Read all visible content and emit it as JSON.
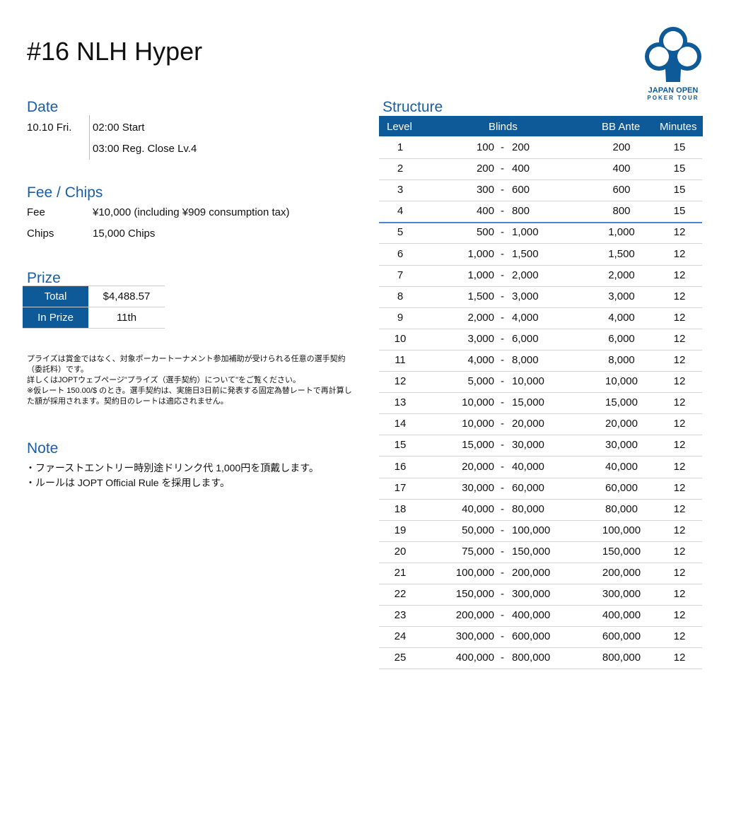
{
  "title": "#16 NLH Hyper",
  "logo": {
    "text1": "JAPAN OPEN",
    "text2": "POKER TOUR",
    "color": "#0e5a98"
  },
  "date": {
    "heading": "Date",
    "day": "10.10 Fri.",
    "start": "02:00 Start",
    "reg_close": "03:00 Reg. Close Lv.4"
  },
  "fee_chips": {
    "heading": "Fee / Chips",
    "fee_label": "Fee",
    "fee_value": "¥10,000 (including ¥909 consumption tax)",
    "chips_label": "Chips",
    "chips_value": "15,000 Chips"
  },
  "prize": {
    "heading": "Prize",
    "total_label": "Total",
    "total_value": "$4,488.57",
    "in_prize_label": "In Prize",
    "in_prize_value": "11th"
  },
  "prize_note": [
    "プライズは賞金ではなく、対象ポーカートーナメント参加補助が受けられる任意の選手契約（委託料）です。",
    "詳しくはJOPTウェブページ\"プライズ（選手契約）について\"をご覧ください。",
    "※仮レート 150.00/$ のとき。選手契約は、実施日3日前に発表する固定為替レートで再計算した額が採用されます。契約日のレートは適応されません。"
  ],
  "note": {
    "heading": "Note",
    "items": [
      "・ファーストエントリー時別途ドリンク代  1,000円を頂戴します。",
      "・ルールは JOPT Official Rule を採用します。"
    ]
  },
  "structure": {
    "heading": "Structure",
    "columns": [
      "Level",
      "Blinds",
      "BB Ante",
      "Minutes"
    ],
    "rows": [
      [
        "1",
        "100",
        "200",
        "200",
        "15"
      ],
      [
        "2",
        "200",
        "400",
        "400",
        "15"
      ],
      [
        "3",
        "300",
        "600",
        "600",
        "15"
      ],
      [
        "4",
        "400",
        "800",
        "800",
        "15"
      ],
      [
        "5",
        "500",
        "1,000",
        "1,000",
        "12"
      ],
      [
        "6",
        "1,000",
        "1,500",
        "1,500",
        "12"
      ],
      [
        "7",
        "1,000",
        "2,000",
        "2,000",
        "12"
      ],
      [
        "8",
        "1,500",
        "3,000",
        "3,000",
        "12"
      ],
      [
        "9",
        "2,000",
        "4,000",
        "4,000",
        "12"
      ],
      [
        "10",
        "3,000",
        "6,000",
        "6,000",
        "12"
      ],
      [
        "11",
        "4,000",
        "8,000",
        "8,000",
        "12"
      ],
      [
        "12",
        "5,000",
        "10,000",
        "10,000",
        "12"
      ],
      [
        "13",
        "10,000",
        "15,000",
        "15,000",
        "12"
      ],
      [
        "14",
        "10,000",
        "20,000",
        "20,000",
        "12"
      ],
      [
        "15",
        "15,000",
        "30,000",
        "30,000",
        "12"
      ],
      [
        "16",
        "20,000",
        "40,000",
        "40,000",
        "12"
      ],
      [
        "17",
        "30,000",
        "60,000",
        "60,000",
        "12"
      ],
      [
        "18",
        "40,000",
        "80,000",
        "80,000",
        "12"
      ],
      [
        "19",
        "50,000",
        "100,000",
        "100,000",
        "12"
      ],
      [
        "20",
        "75,000",
        "150,000",
        "150,000",
        "12"
      ],
      [
        "21",
        "100,000",
        "200,000",
        "200,000",
        "12"
      ],
      [
        "22",
        "150,000",
        "300,000",
        "300,000",
        "12"
      ],
      [
        "23",
        "200,000",
        "400,000",
        "400,000",
        "12"
      ],
      [
        "24",
        "300,000",
        "600,000",
        "600,000",
        "12"
      ],
      [
        "25",
        "400,000",
        "800,000",
        "800,000",
        "12"
      ]
    ],
    "separator": "-"
  }
}
